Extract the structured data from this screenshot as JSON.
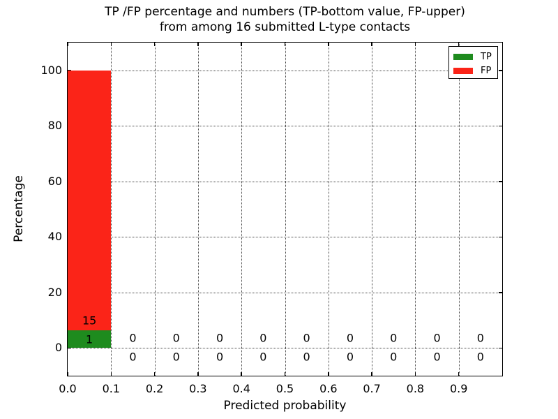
{
  "figure": {
    "title_line1": "TP /FP percentage and numbers (TP-bottom value, FP-upper)",
    "title_line2": "from among 16 submitted L-type contacts"
  },
  "chart_data": {
    "type": "bar",
    "stacked": true,
    "title": "TP /FP percentage and numbers (TP-bottom value, FP-upper) from among 16 submitted L-type contacts",
    "xlabel": "Predicted probability",
    "ylabel": "Percentage",
    "xlim": [
      0.0,
      1.0
    ],
    "ylim": [
      -10,
      110
    ],
    "grid": "dotted",
    "legend_position": "upper right",
    "total_submitted": 16,
    "bin_width": 0.1,
    "bin_starts": [
      0.0,
      0.1,
      0.2,
      0.3,
      0.4,
      0.5,
      0.6,
      0.7,
      0.8,
      0.9
    ],
    "xtick_values": [
      0.0,
      0.1,
      0.2,
      0.3,
      0.4,
      0.5,
      0.6,
      0.7,
      0.8,
      0.9
    ],
    "xtick_labels": [
      "0.0",
      "0.1",
      "0.2",
      "0.3",
      "0.4",
      "0.5",
      "0.6",
      "0.7",
      "0.8",
      "0.9"
    ],
    "ytick_values": [
      0,
      20,
      40,
      60,
      80,
      100
    ],
    "ytick_labels": [
      "0",
      "20",
      "40",
      "60",
      "80",
      "100"
    ],
    "series": [
      {
        "name": "TP",
        "color": "#1e8b1e",
        "counts": [
          1,
          0,
          0,
          0,
          0,
          0,
          0,
          0,
          0,
          0
        ],
        "percentages": [
          6.25,
          0,
          0,
          0,
          0,
          0,
          0,
          0,
          0,
          0
        ]
      },
      {
        "name": "FP",
        "color": "#fb2418",
        "counts": [
          15,
          0,
          0,
          0,
          0,
          0,
          0,
          0,
          0,
          0
        ],
        "percentages": [
          93.75,
          0,
          0,
          0,
          0,
          0,
          0,
          0,
          0,
          0
        ]
      }
    ]
  }
}
